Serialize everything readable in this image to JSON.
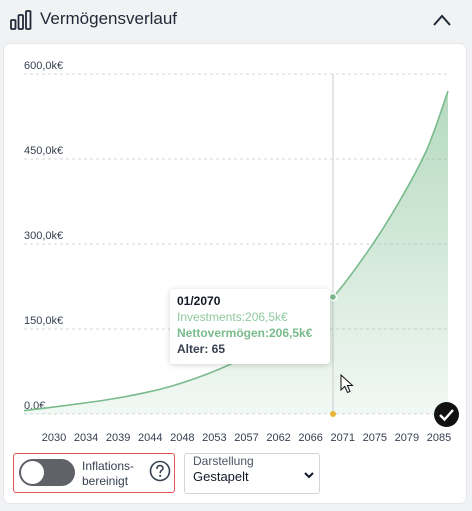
{
  "header": {
    "title": "Vermögensverlauf",
    "title_icon": "bar-chart-icon",
    "collapse_icon": "chevron-up-icon"
  },
  "chart_data": {
    "type": "area",
    "title": "",
    "xlabel": "",
    "ylabel": "",
    "x_tick_labels": [
      "2030",
      "2034",
      "2039",
      "2044",
      "2048",
      "2053",
      "2057",
      "2062",
      "2066",
      "2071",
      "2075",
      "2079",
      "2085"
    ],
    "y_tick_labels": [
      "600,0k€",
      "450,0k€",
      "300,0k€",
      "150,0k€",
      "0,0€"
    ],
    "ylim": [
      0,
      600000
    ],
    "xlim": [
      2027,
      2086
    ],
    "grid": true,
    "series": [
      {
        "name": "Investments",
        "color": "#79bb8c",
        "x": [
          2027,
          2030,
          2034,
          2039,
          2044,
          2048,
          2053,
          2057,
          2062,
          2066,
          2070,
          2075,
          2079,
          2083,
          2086
        ],
        "values": [
          6000,
          10500,
          17000,
          26000,
          38000,
          51000,
          73000,
          96000,
          134000,
          173000,
          206500,
          290000,
          370000,
          465000,
          570000
        ]
      }
    ],
    "highlight": {
      "x": 2070,
      "value": 206500
    }
  },
  "tooltip": {
    "date": "01/2070",
    "investments": "Investments:206,5k€",
    "nettovermoegen": "Nettovermögen:206,5k€",
    "alter": "Alter: 65"
  },
  "controls": {
    "inflation_label": "Inflations-bereinigt",
    "inflation_on": false,
    "help_icon": "question-circle-icon",
    "check_icon": "check-icon",
    "display_label": "Darstellung",
    "display_value": "Gestapelt"
  }
}
